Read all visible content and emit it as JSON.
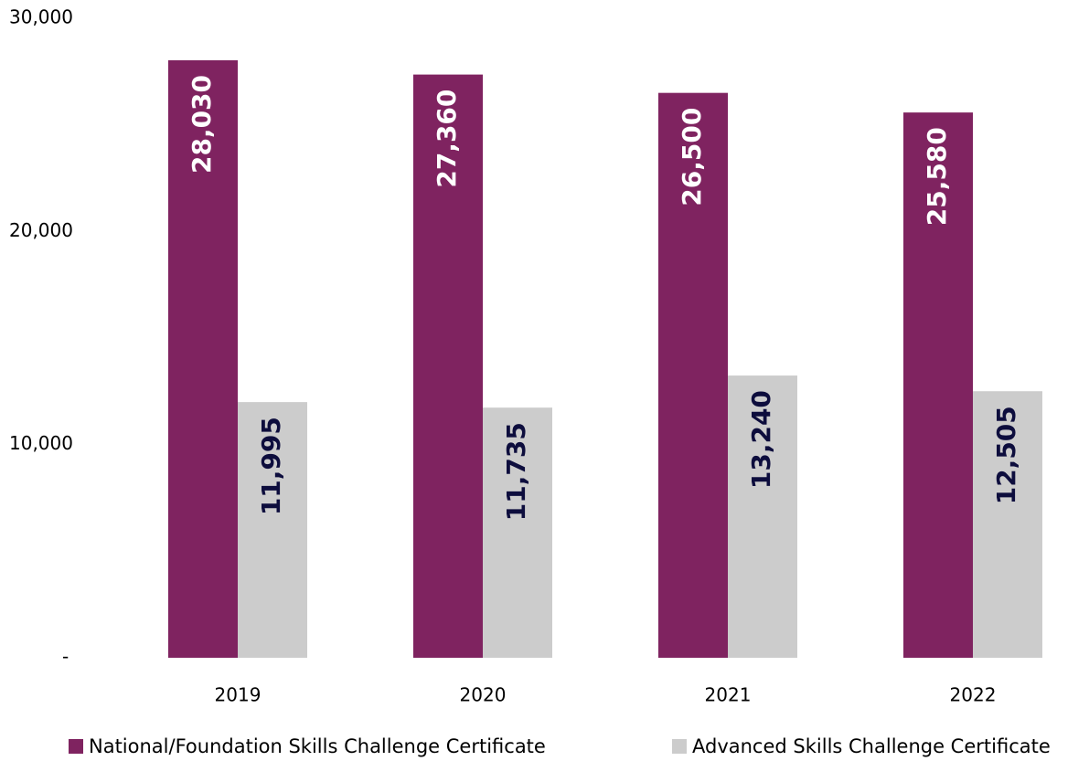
{
  "chart_data": {
    "type": "bar",
    "categories": [
      "2019",
      "2020",
      "2021",
      "2022"
    ],
    "series": [
      {
        "name": "National/Foundation Skills Challenge Certificate",
        "color": "#7f2360",
        "label_color": "#ffffff",
        "values": [
          28030,
          27360,
          26500,
          25580
        ],
        "value_labels": [
          "28,030",
          "27,360",
          "26,500",
          "25,580"
        ]
      },
      {
        "name": "Advanced Skills Challenge Certificate",
        "color": "#cccccc",
        "label_color": "#0d0d3d",
        "values": [
          11995,
          11735,
          13240,
          12505
        ],
        "value_labels": [
          "11,995",
          "11,735",
          "13,240",
          "12,505"
        ]
      }
    ],
    "ylim": [
      0,
      30000
    ],
    "yticks": [
      {
        "value": 0,
        "label": "-"
      },
      {
        "value": 10000,
        "label": "10,000"
      },
      {
        "value": 20000,
        "label": "20,000"
      },
      {
        "value": 30000,
        "label": "30,000"
      }
    ],
    "grid": false,
    "legend": "bottom"
  }
}
